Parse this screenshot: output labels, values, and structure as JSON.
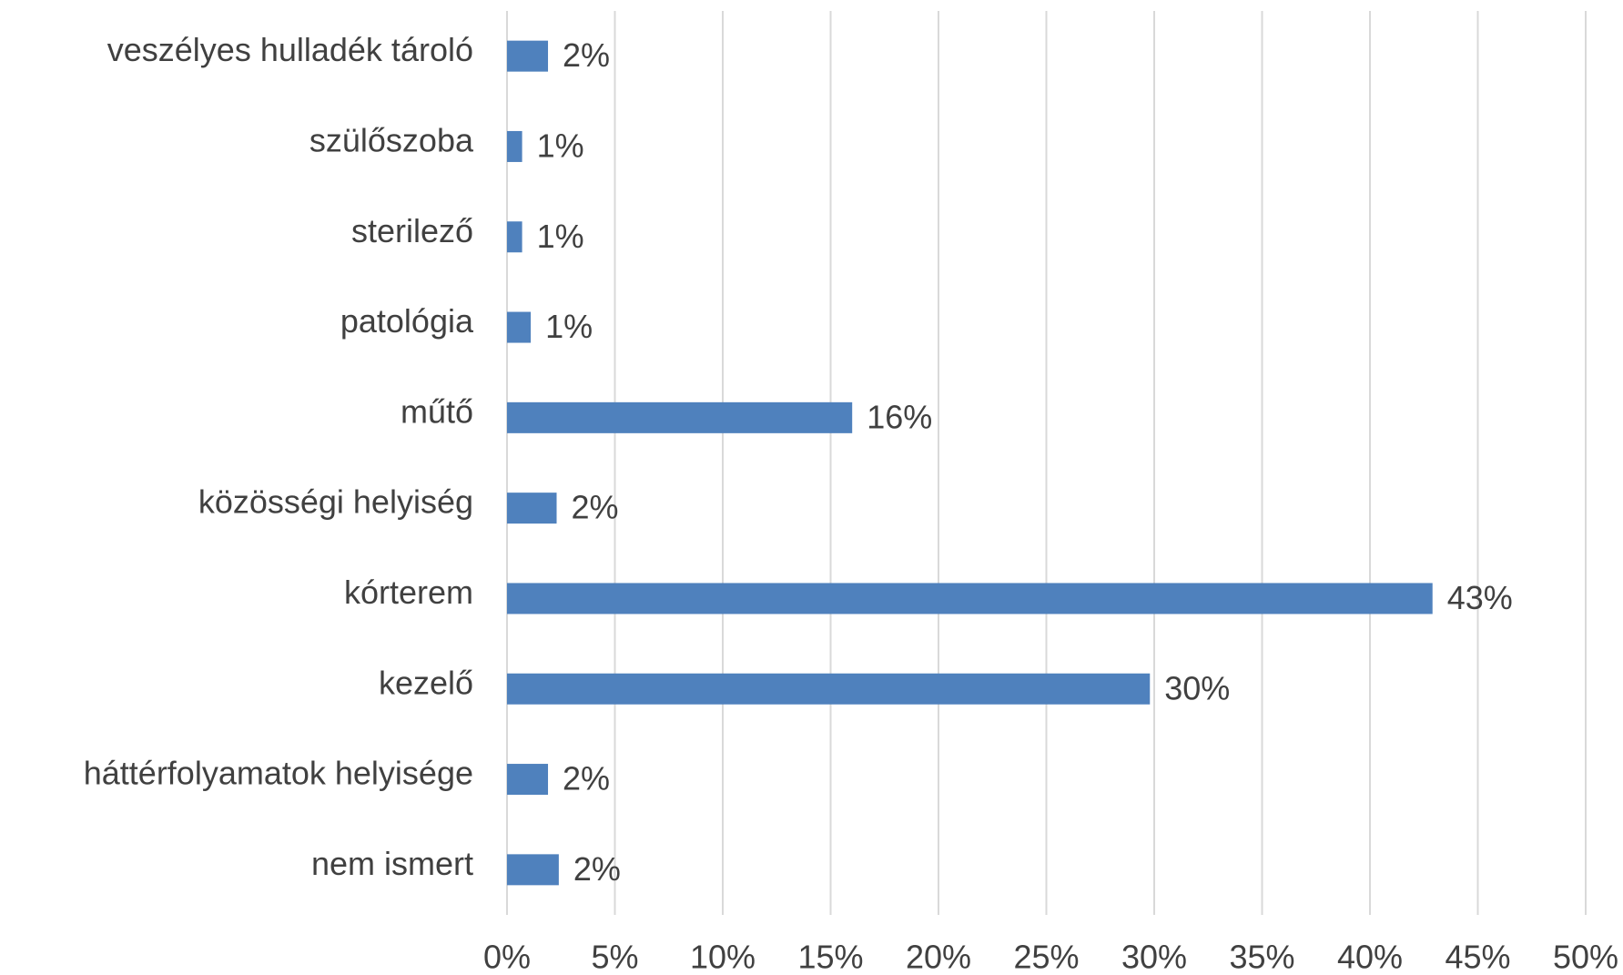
{
  "chart_data": {
    "type": "bar",
    "orientation": "horizontal",
    "categories": [
      "veszélyes hulladék tároló",
      "szülőszoba",
      "sterilező",
      "patológia",
      "műtő",
      "közösségi helyiség",
      "kórterem",
      "kezelő",
      "háttérfolyamatok helyisége",
      "nem ismert"
    ],
    "values": [
      1.9,
      0.7,
      0.7,
      1.1,
      16.0,
      2.3,
      42.9,
      29.8,
      1.9,
      2.4
    ],
    "value_labels": [
      "2%",
      "1%",
      "1%",
      "1%",
      "16%",
      "2%",
      "43%",
      "30%",
      "2%",
      "2%"
    ],
    "color": "#4f81bd",
    "xlim": [
      0,
      50
    ],
    "xticks": [
      {
        "value": 0,
        "label": "0%"
      },
      {
        "value": 5,
        "label": "5%"
      },
      {
        "value": 10,
        "label": "10%"
      },
      {
        "value": 15,
        "label": "15%"
      },
      {
        "value": 20,
        "label": "20%"
      },
      {
        "value": 25,
        "label": "25%"
      },
      {
        "value": 30,
        "label": "30%"
      },
      {
        "value": 35,
        "label": "35%"
      },
      {
        "value": 40,
        "label": "40%"
      },
      {
        "value": 45,
        "label": "45%"
      },
      {
        "value": 50,
        "label": "50%"
      }
    ],
    "grid": true
  }
}
